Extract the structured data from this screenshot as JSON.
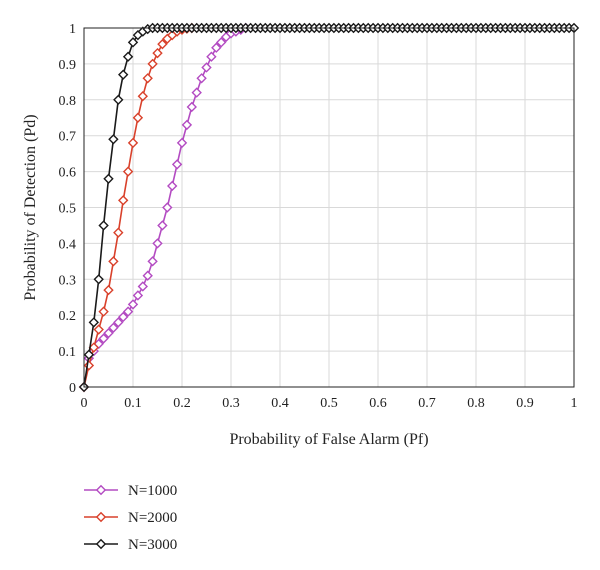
{
  "chart_data": {
    "type": "line",
    "title": "",
    "xlabel": "Probability of False Alarm (Pf)",
    "ylabel": "Probability of Detection (Pd)",
    "xlim": [
      0,
      1
    ],
    "ylim": [
      0,
      1
    ],
    "x_ticks": [
      "0",
      "0.1",
      "0.2",
      "0.3",
      "0.4",
      "0.5",
      "0.6",
      "0.7",
      "0.8",
      "0.9",
      "1"
    ],
    "y_ticks": [
      "0",
      "0.1",
      "0.2",
      "0.3",
      "0.4",
      "0.5",
      "0.6",
      "0.7",
      "0.8",
      "0.9",
      "1"
    ],
    "grid": true,
    "legend_position": "bottom-left, below plot",
    "marker": "diamond",
    "series": [
      {
        "name": "N=1000",
        "color": "#b34bc2",
        "x": [
          0,
          0.01,
          0.02,
          0.03,
          0.04,
          0.05,
          0.06,
          0.07,
          0.08,
          0.09,
          0.1,
          0.11,
          0.12,
          0.13,
          0.14,
          0.15,
          0.16,
          0.17,
          0.18,
          0.19,
          0.2,
          0.21,
          0.22,
          0.23,
          0.24,
          0.25,
          0.26,
          0.27,
          0.28,
          0.29,
          0.3,
          0.31,
          0.32,
          0.33
        ],
        "y": [
          0,
          0.08,
          0.1,
          0.12,
          0.135,
          0.15,
          0.165,
          0.18,
          0.195,
          0.21,
          0.23,
          0.255,
          0.28,
          0.31,
          0.35,
          0.4,
          0.45,
          0.5,
          0.56,
          0.62,
          0.68,
          0.73,
          0.78,
          0.82,
          0.86,
          0.89,
          0.92,
          0.945,
          0.96,
          0.975,
          0.985,
          0.99,
          0.995,
          1.0
        ]
      },
      {
        "name": "N=2000",
        "color": "#d9412b",
        "x": [
          0,
          0.01,
          0.02,
          0.03,
          0.04,
          0.05,
          0.06,
          0.07,
          0.08,
          0.09,
          0.1,
          0.11,
          0.12,
          0.13,
          0.14,
          0.15,
          0.16,
          0.17,
          0.18,
          0.19,
          0.2,
          0.21,
          0.22
        ],
        "y": [
          0,
          0.06,
          0.11,
          0.16,
          0.21,
          0.27,
          0.35,
          0.43,
          0.52,
          0.6,
          0.68,
          0.75,
          0.81,
          0.86,
          0.9,
          0.93,
          0.955,
          0.97,
          0.98,
          0.99,
          0.995,
          0.998,
          1.0
        ]
      },
      {
        "name": "N=3000",
        "color": "#1a1a1a",
        "x": [
          0,
          0.01,
          0.02,
          0.03,
          0.04,
          0.05,
          0.06,
          0.07,
          0.08,
          0.09,
          0.1,
          0.11,
          0.12,
          0.13,
          0.14,
          0.15,
          0.16,
          0.17,
          0.18,
          0.19,
          0.2,
          0.21,
          0.22,
          0.23,
          0.24,
          0.25,
          0.26,
          0.27,
          0.28,
          0.29,
          0.3,
          0.31,
          0.32,
          0.33,
          0.34,
          0.35,
          0.36,
          0.37,
          0.38,
          0.39,
          0.4,
          0.41,
          0.42,
          0.43,
          0.44,
          0.45,
          0.46,
          0.47,
          0.48,
          0.49,
          0.5,
          0.51,
          0.52,
          0.53,
          0.54,
          0.55,
          0.56,
          0.57,
          0.58,
          0.59,
          0.6,
          0.61,
          0.62,
          0.63,
          0.64,
          0.65,
          0.66,
          0.67,
          0.68,
          0.69,
          0.7,
          0.71,
          0.72,
          0.73,
          0.74,
          0.75,
          0.76,
          0.77,
          0.78,
          0.79,
          0.8,
          0.81,
          0.82,
          0.83,
          0.84,
          0.85,
          0.86,
          0.87,
          0.88,
          0.89,
          0.9,
          0.91,
          0.92,
          0.93,
          0.94,
          0.95,
          0.96,
          0.97,
          0.98,
          0.99,
          1.0
        ],
        "y": [
          0,
          0.09,
          0.18,
          0.3,
          0.45,
          0.58,
          0.69,
          0.8,
          0.87,
          0.92,
          0.96,
          0.98,
          0.99,
          0.997,
          1.0,
          1.0,
          1.0,
          1.0,
          1.0,
          1.0,
          1.0,
          1.0,
          1.0,
          1.0,
          1.0,
          1.0,
          1.0,
          1.0,
          1.0,
          1.0,
          1.0,
          1.0,
          1.0,
          1.0,
          1.0,
          1.0,
          1.0,
          1.0,
          1.0,
          1.0,
          1.0,
          1.0,
          1.0,
          1.0,
          1.0,
          1.0,
          1.0,
          1.0,
          1.0,
          1.0,
          1.0,
          1.0,
          1.0,
          1.0,
          1.0,
          1.0,
          1.0,
          1.0,
          1.0,
          1.0,
          1.0,
          1.0,
          1.0,
          1.0,
          1.0,
          1.0,
          1.0,
          1.0,
          1.0,
          1.0,
          1.0,
          1.0,
          1.0,
          1.0,
          1.0,
          1.0,
          1.0,
          1.0,
          1.0,
          1.0,
          1.0,
          1.0,
          1.0,
          1.0,
          1.0,
          1.0,
          1.0,
          1.0,
          1.0,
          1.0,
          1.0,
          1.0,
          1.0,
          1.0,
          1.0,
          1.0,
          1.0,
          1.0,
          1.0,
          1.0,
          1.0
        ]
      }
    ]
  }
}
